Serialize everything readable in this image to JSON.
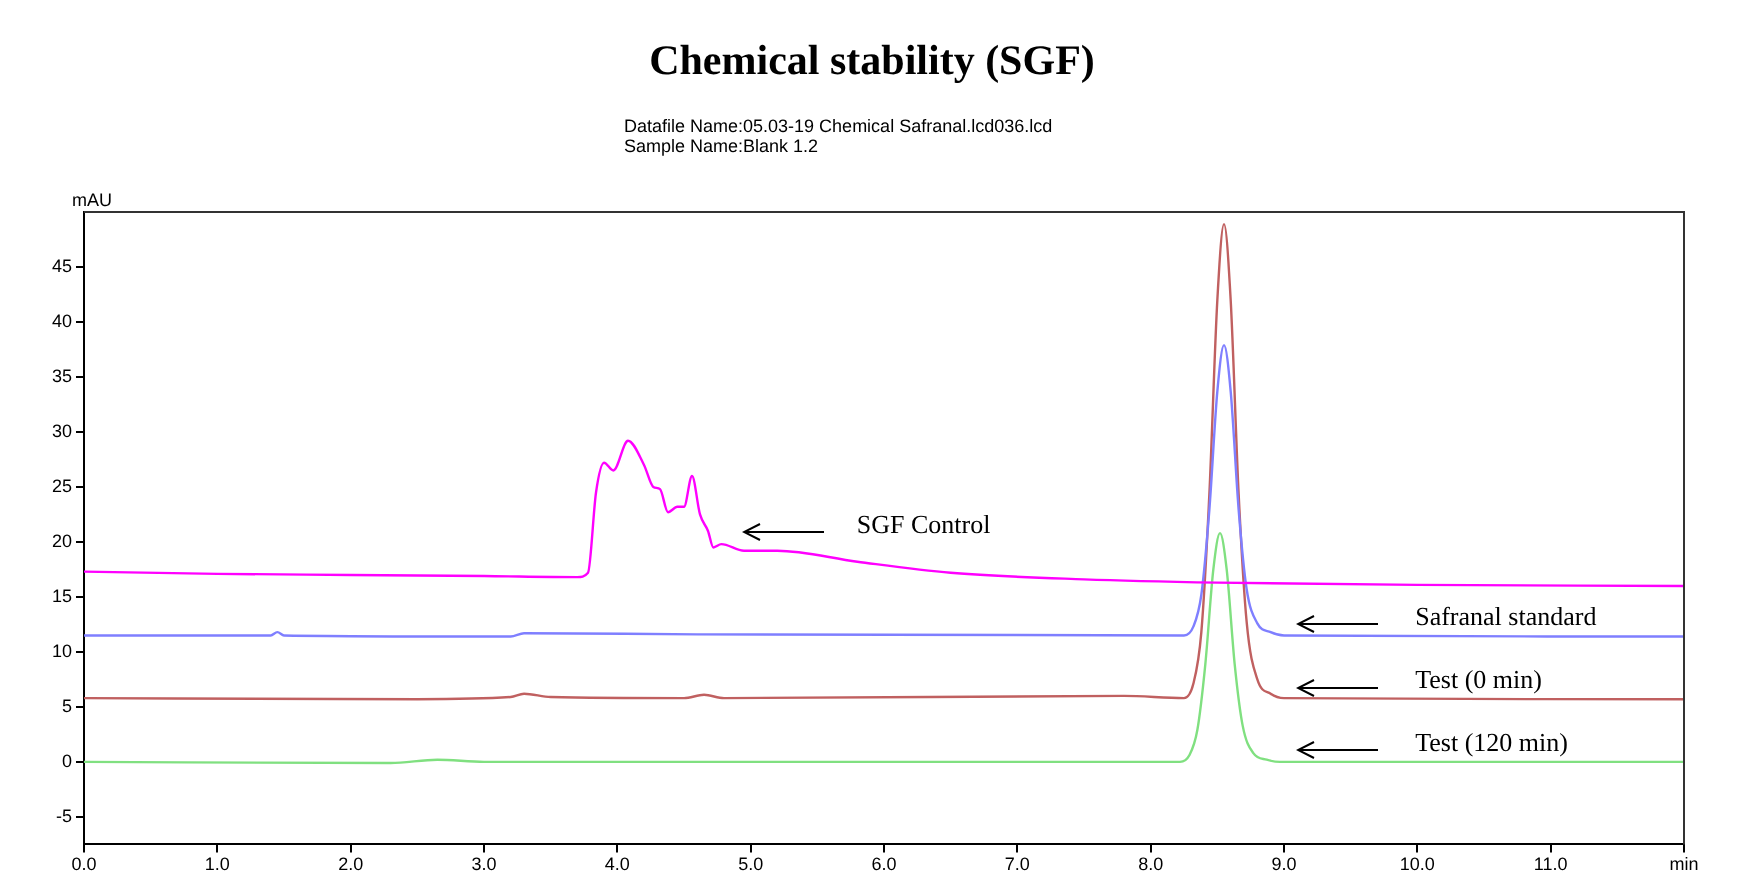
{
  "chart_data": {
    "type": "line",
    "title": "Chemical stability (SGF)",
    "subtitle": "Datafile Name:05.03-19 Chemical Safranal.lcd036.lcd",
    "annotations": [
      "Sample Name:Blank 1.2"
    ],
    "ylabel": "mAU",
    "xlim": [
      0,
      12
    ],
    "ylim": [
      -7.5,
      50
    ],
    "xticks": [
      {
        "value": 0,
        "label": "0.0"
      },
      {
        "value": 1,
        "label": "1.0"
      },
      {
        "value": 2,
        "label": "2.0"
      },
      {
        "value": 3,
        "label": "3.0"
      },
      {
        "value": 4,
        "label": "4.0"
      },
      {
        "value": 5,
        "label": "5.0"
      },
      {
        "value": 6,
        "label": "6.0"
      },
      {
        "value": 7,
        "label": "7.0"
      },
      {
        "value": 8,
        "label": "8.0"
      },
      {
        "value": 9,
        "label": "9.0"
      },
      {
        "value": 10,
        "label": "10.0"
      },
      {
        "value": 11,
        "label": "11.0"
      },
      {
        "value": 12,
        "label": "min"
      }
    ],
    "yticks": [
      -5,
      0,
      5,
      10,
      15,
      20,
      25,
      30,
      35,
      40,
      45
    ],
    "grid": false,
    "legend": false,
    "marker": "none",
    "line_style": "solid",
    "series": [
      {
        "name": "SGF Control",
        "color": "#ff00ff",
        "x": [
          0,
          1,
          2,
          3,
          3.7,
          3.78,
          3.84,
          3.9,
          3.97,
          4.08,
          4.2,
          4.27,
          4.32,
          4.38,
          4.45,
          4.5,
          4.56,
          4.62,
          4.68,
          4.72,
          4.78,
          4.95,
          5.2,
          5.8,
          6.5,
          7.5,
          8.5,
          10,
          12
        ],
        "values": [
          17.3,
          17.1,
          17.0,
          16.9,
          16.8,
          17.2,
          24.5,
          27.2,
          26.5,
          29.2,
          27.0,
          25.0,
          24.8,
          22.7,
          23.2,
          23.2,
          26.0,
          22.5,
          21.0,
          19.5,
          19.8,
          19.2,
          19.2,
          18.2,
          17.2,
          16.6,
          16.3,
          16.1,
          16.0
        ]
      },
      {
        "name": "Safranal standard",
        "color": "#7f7fff",
        "x": [
          0,
          1.4,
          1.45,
          1.5,
          3.2,
          3.3,
          4.6,
          8.25,
          8.32,
          8.38,
          8.44,
          8.5,
          8.55,
          8.6,
          8.66,
          8.72,
          8.8,
          8.9,
          9.0,
          12
        ],
        "values": [
          11.5,
          11.5,
          11.8,
          11.5,
          11.4,
          11.7,
          11.6,
          11.5,
          12.3,
          15.2,
          22.9,
          33.7,
          37.9,
          33.7,
          22.9,
          15.7,
          12.6,
          11.8,
          11.5,
          11.4
        ]
      },
      {
        "name": "Test (0 min)",
        "color": "#c06060",
        "x": [
          0,
          2.5,
          3.2,
          3.3,
          3.5,
          4.5,
          4.65,
          4.8,
          7.8,
          8.25,
          8.32,
          8.38,
          8.44,
          8.5,
          8.55,
          8.6,
          8.66,
          8.72,
          8.8,
          8.9,
          9.0,
          12
        ],
        "values": [
          5.8,
          5.7,
          5.9,
          6.2,
          5.9,
          5.8,
          6.1,
          5.8,
          6.0,
          5.8,
          7.1,
          11.8,
          24.3,
          42.0,
          48.9,
          42.0,
          24.3,
          12.7,
          7.5,
          6.2,
          5.8,
          5.7
        ]
      },
      {
        "name": "Test (120 min)",
        "color": "#80e080",
        "x": [
          0,
          2.3,
          2.65,
          3.0,
          8.22,
          8.29,
          8.35,
          8.41,
          8.47,
          8.52,
          8.57,
          8.63,
          8.69,
          8.77,
          8.87,
          8.97,
          12
        ],
        "values": [
          0,
          -0.1,
          0.2,
          0,
          0,
          0.6,
          2.9,
          8.9,
          17.5,
          20.8,
          17.5,
          8.9,
          3.3,
          0.8,
          0.2,
          0,
          0
        ]
      }
    ]
  }
}
